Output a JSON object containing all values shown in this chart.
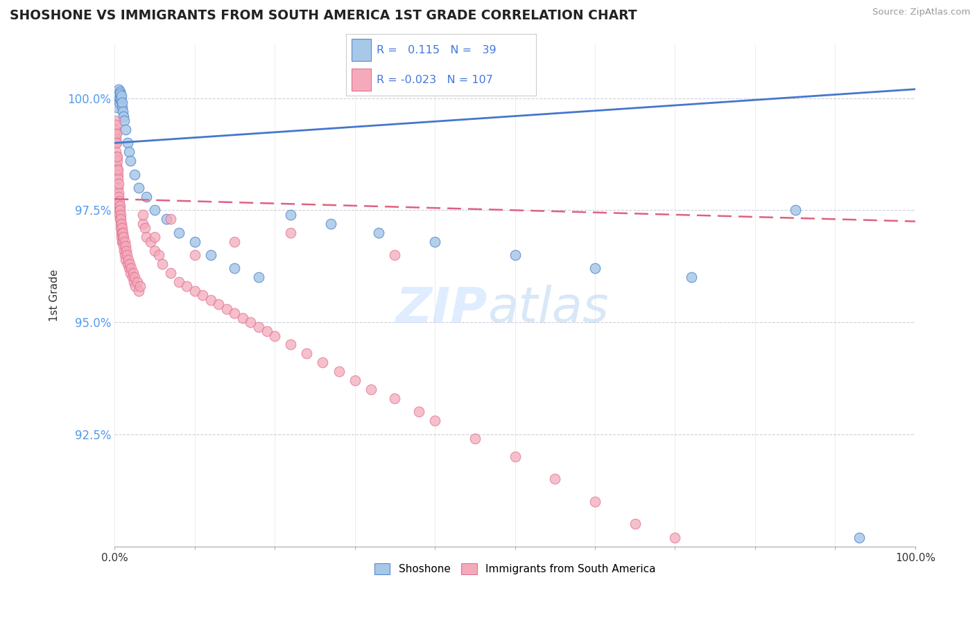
{
  "title": "SHOSHONE VS IMMIGRANTS FROM SOUTH AMERICA 1ST GRADE CORRELATION CHART",
  "source": "Source: ZipAtlas.com",
  "ylabel": "1st Grade",
  "legend_label1": "Shoshone",
  "legend_label2": "Immigrants from South America",
  "r1": 0.115,
  "n1": 39,
  "r2": -0.023,
  "n2": 107,
  "color_blue": "#A8C8E8",
  "color_pink": "#F4AABB",
  "edge_blue": "#5588CC",
  "edge_pink": "#E07090",
  "line_blue": "#4477CC",
  "line_pink": "#E06080",
  "xlim": [
    0.0,
    100.0
  ],
  "ylim": [
    90.0,
    101.2
  ],
  "yticks": [
    90.0,
    92.5,
    95.0,
    97.5,
    100.0
  ],
  "blue_x": [
    0.3,
    0.4,
    0.45,
    0.5,
    0.55,
    0.6,
    0.65,
    0.7,
    0.75,
    0.8,
    0.85,
    0.9,
    0.95,
    1.0,
    1.1,
    1.2,
    1.4,
    1.6,
    1.8,
    2.0,
    2.5,
    3.0,
    4.0,
    5.0,
    6.5,
    8.0,
    10.0,
    12.0,
    15.0,
    18.0,
    22.0,
    27.0,
    33.0,
    40.0,
    50.0,
    60.0,
    72.0,
    85.0,
    93.0
  ],
  "blue_y": [
    99.8,
    100.1,
    100.05,
    100.2,
    100.0,
    99.9,
    100.15,
    100.1,
    99.95,
    100.0,
    100.05,
    99.8,
    99.9,
    99.7,
    99.6,
    99.5,
    99.3,
    99.0,
    98.8,
    98.6,
    98.3,
    98.0,
    97.8,
    97.5,
    97.3,
    97.0,
    96.8,
    96.5,
    96.2,
    96.0,
    97.4,
    97.2,
    97.0,
    96.8,
    96.5,
    96.2,
    96.0,
    97.5,
    90.2
  ],
  "pink_x": [
    0.05,
    0.08,
    0.1,
    0.12,
    0.14,
    0.16,
    0.18,
    0.2,
    0.22,
    0.25,
    0.28,
    0.3,
    0.32,
    0.35,
    0.38,
    0.4,
    0.42,
    0.45,
    0.48,
    0.5,
    0.52,
    0.55,
    0.58,
    0.6,
    0.62,
    0.65,
    0.68,
    0.7,
    0.72,
    0.75,
    0.78,
    0.8,
    0.82,
    0.85,
    0.88,
    0.9,
    0.92,
    0.95,
    0.98,
    1.0,
    1.05,
    1.1,
    1.15,
    1.2,
    1.25,
    1.3,
    1.35,
    1.4,
    1.45,
    1.5,
    1.6,
    1.7,
    1.8,
    1.9,
    2.0,
    2.1,
    2.2,
    2.3,
    2.4,
    2.5,
    2.6,
    2.8,
    3.0,
    3.2,
    3.5,
    3.8,
    4.0,
    4.5,
    5.0,
    5.5,
    6.0,
    7.0,
    8.0,
    9.0,
    10.0,
    11.0,
    12.0,
    13.0,
    14.0,
    15.0,
    16.0,
    17.0,
    18.0,
    19.0,
    20.0,
    22.0,
    24.0,
    26.0,
    28.0,
    30.0,
    32.0,
    35.0,
    38.0,
    40.0,
    45.0,
    50.0,
    55.0,
    60.0,
    65.0,
    70.0,
    35.0,
    22.0,
    15.0,
    10.0,
    7.0,
    5.0,
    3.5
  ],
  "pink_y": [
    99.2,
    99.5,
    99.3,
    99.1,
    99.4,
    99.0,
    98.8,
    99.2,
    98.7,
    98.5,
    99.0,
    98.6,
    98.4,
    98.7,
    98.3,
    98.2,
    98.4,
    98.0,
    97.9,
    98.1,
    97.8,
    97.6,
    97.7,
    97.5,
    97.4,
    97.6,
    97.3,
    97.5,
    97.2,
    97.4,
    97.1,
    97.3,
    97.0,
    97.2,
    96.9,
    97.1,
    96.8,
    97.0,
    96.9,
    96.8,
    97.0,
    96.7,
    96.9,
    96.6,
    96.8,
    96.5,
    96.7,
    96.4,
    96.6,
    96.5,
    96.3,
    96.4,
    96.2,
    96.3,
    96.1,
    96.2,
    96.0,
    96.1,
    95.9,
    96.0,
    95.8,
    95.9,
    95.7,
    95.8,
    97.2,
    97.1,
    96.9,
    96.8,
    96.6,
    96.5,
    96.3,
    96.1,
    95.9,
    95.8,
    95.7,
    95.6,
    95.5,
    95.4,
    95.3,
    95.2,
    95.1,
    95.0,
    94.9,
    94.8,
    94.7,
    94.5,
    94.3,
    94.1,
    93.9,
    93.7,
    93.5,
    93.3,
    93.0,
    92.8,
    92.4,
    92.0,
    91.5,
    91.0,
    90.5,
    90.2,
    96.5,
    97.0,
    96.8,
    96.5,
    97.3,
    96.9,
    97.4
  ]
}
